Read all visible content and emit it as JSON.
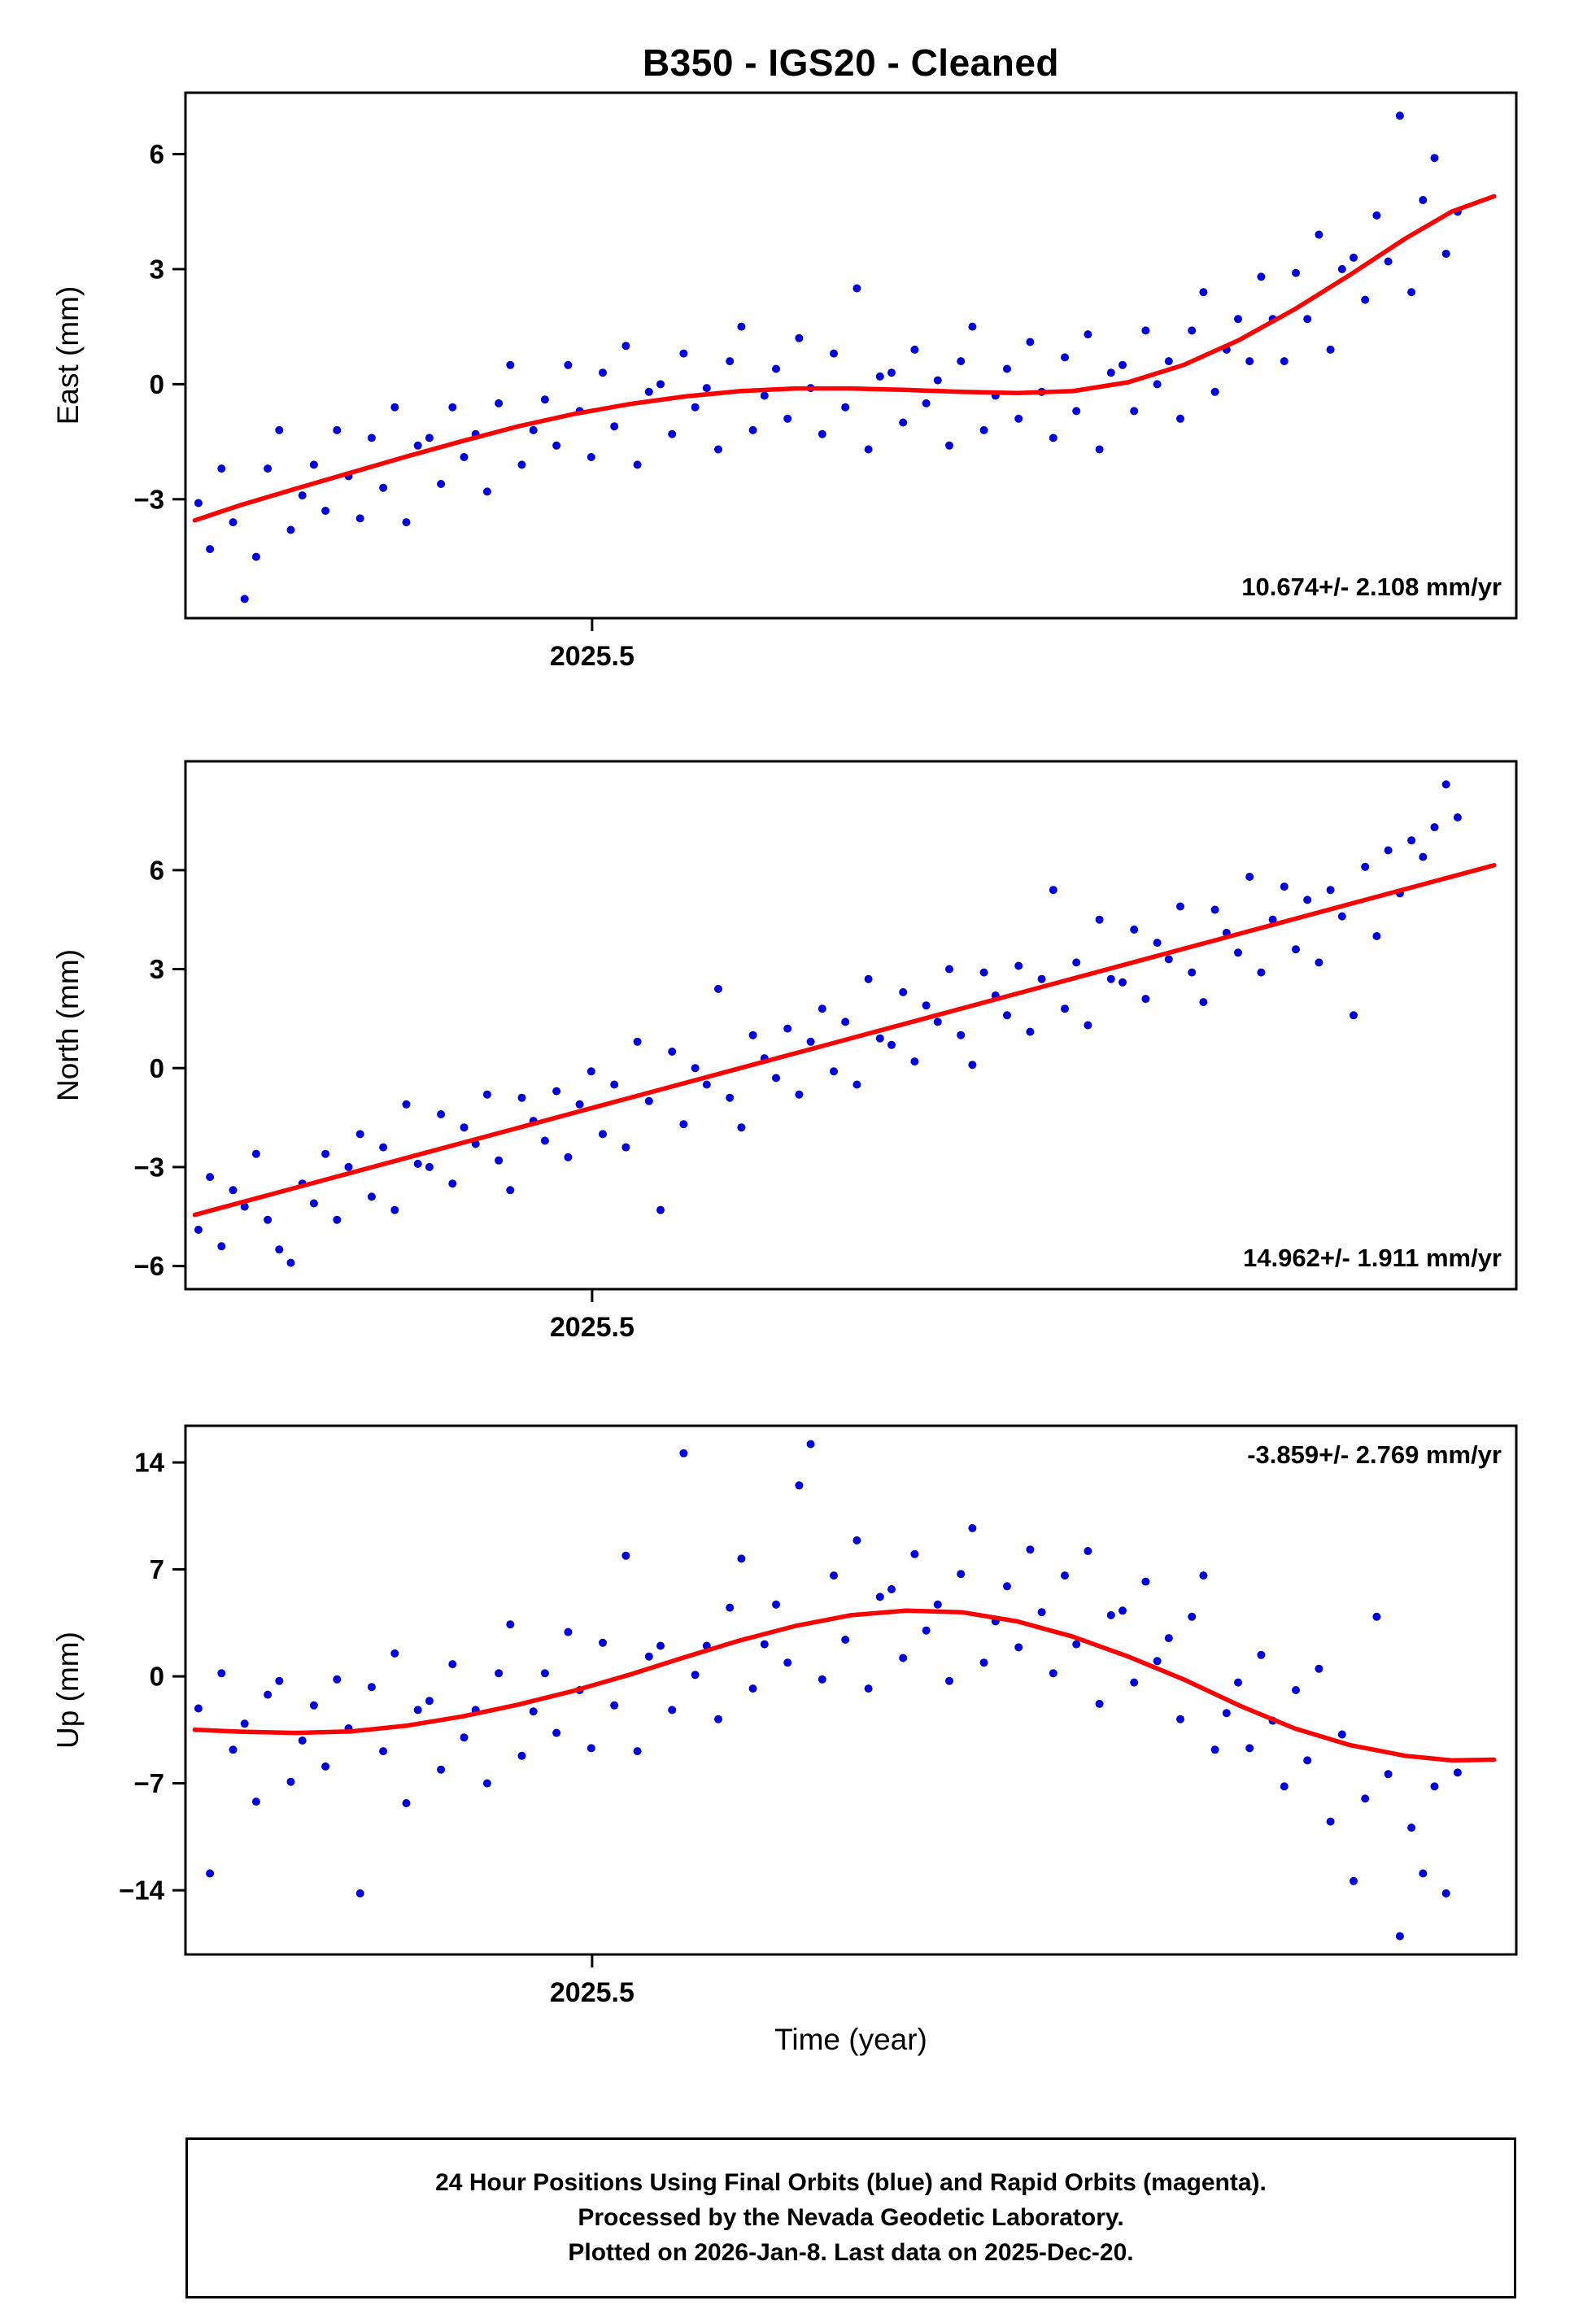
{
  "header": {
    "title": "B350  - IGS20 - Cleaned"
  },
  "chart_data": {
    "type": "scatter",
    "title": "B350  - IGS20 - Cleaned",
    "xlabel": "Time (year)",
    "legend": "none",
    "grid": false,
    "point_color": "#0000dd",
    "trend_color": "#ff0000",
    "frame_color": "#000000",
    "x_axis": {
      "min": 2025.28,
      "max": 2026.0,
      "tick_values": [
        2025.5
      ],
      "tick_labels": [
        "2025.5"
      ]
    },
    "x_series": {
      "start": 2025.287,
      "step": 0.00625,
      "count": 110
    },
    "panels": [
      {
        "name": "east",
        "ylabel": "East (mm)",
        "ymin": -6.1,
        "ymax": 7.6,
        "yticks": [
          -3,
          0,
          3,
          6
        ],
        "rate_label": "10.674+/- 2.108 mm/yr",
        "rate_corner": "bottom-right",
        "scatter_y": [
          -3.1,
          -4.3,
          -2.2,
          -3.6,
          -5.6,
          -4.5,
          -2.2,
          -1.2,
          -3.8,
          -2.9,
          -2.1,
          -3.3,
          -1.2,
          -2.4,
          -3.5,
          -1.4,
          -2.7,
          -0.6,
          -3.6,
          -1.6,
          -1.4,
          -2.6,
          -0.6,
          -1.9,
          -1.3,
          -2.8,
          -0.5,
          0.5,
          -2.1,
          -1.2,
          -0.4,
          -1.6,
          0.5,
          -0.7,
          -1.9,
          0.3,
          -1.1,
          1.0,
          -2.1,
          -0.2,
          0.0,
          -1.3,
          0.8,
          -0.6,
          -0.1,
          -1.7,
          0.6,
          1.5,
          -1.2,
          -0.3,
          0.4,
          -0.9,
          1.2,
          -0.1,
          -1.3,
          0.8,
          -0.6,
          2.5,
          -1.7,
          0.2,
          0.3,
          -1.0,
          0.9,
          -0.5,
          0.1,
          -1.6,
          0.6,
          1.5,
          -1.2,
          -0.3,
          0.4,
          -0.9,
          1.1,
          -0.2,
          -1.4,
          0.7,
          -0.7,
          1.3,
          -1.7,
          0.3,
          0.5,
          -0.7,
          1.4,
          0.0,
          0.6,
          -0.9,
          1.4,
          2.4,
          -0.2,
          0.9,
          1.7,
          0.6,
          2.8,
          1.7,
          0.6,
          2.9,
          1.7,
          3.9,
          0.9,
          3.0,
          3.3,
          2.2,
          4.4,
          3.2,
          7.0,
          2.4,
          4.8,
          5.9,
          3.4,
          4.5
        ],
        "trend": [
          [
            2025.285,
            -3.55
          ],
          [
            2025.31,
            -3.15
          ],
          [
            2025.34,
            -2.72
          ],
          [
            2025.37,
            -2.3
          ],
          [
            2025.4,
            -1.88
          ],
          [
            2025.43,
            -1.48
          ],
          [
            2025.46,
            -1.1
          ],
          [
            2025.49,
            -0.78
          ],
          [
            2025.52,
            -0.52
          ],
          [
            2025.55,
            -0.32
          ],
          [
            2025.58,
            -0.18
          ],
          [
            2025.61,
            -0.11
          ],
          [
            2025.64,
            -0.11
          ],
          [
            2025.67,
            -0.15
          ],
          [
            2025.7,
            -0.2
          ],
          [
            2025.73,
            -0.23
          ],
          [
            2025.76,
            -0.18
          ],
          [
            2025.79,
            0.05
          ],
          [
            2025.82,
            0.5
          ],
          [
            2025.85,
            1.15
          ],
          [
            2025.88,
            1.95
          ],
          [
            2025.91,
            2.85
          ],
          [
            2025.94,
            3.8
          ],
          [
            2025.965,
            4.5
          ],
          [
            2025.988,
            4.9
          ]
        ]
      },
      {
        "name": "north",
        "ylabel": "North (mm)",
        "ymin": -6.7,
        "ymax": 9.3,
        "yticks": [
          -6,
          -3,
          0,
          3,
          6
        ],
        "rate_label": "14.962+/- 1.911 mm/yr",
        "rate_corner": "bottom-right",
        "scatter_y": [
          -4.9,
          -3.3,
          -5.4,
          -3.7,
          -4.2,
          -2.6,
          -4.6,
          -5.5,
          -5.9,
          -3.5,
          -4.1,
          -2.6,
          -4.6,
          -3.0,
          -2.0,
          -3.9,
          -2.4,
          -4.3,
          -1.1,
          -2.9,
          -3.0,
          -1.4,
          -3.5,
          -1.8,
          -2.3,
          -0.8,
          -2.8,
          -3.7,
          -0.9,
          -1.6,
          -2.2,
          -0.7,
          -2.7,
          -1.1,
          -0.1,
          -2.0,
          -0.5,
          -2.4,
          0.8,
          -1.0,
          -4.3,
          0.5,
          -1.7,
          0.0,
          -0.5,
          2.4,
          -0.9,
          -1.8,
          1.0,
          0.3,
          -0.3,
          1.2,
          -0.8,
          0.8,
          1.8,
          -0.1,
          1.4,
          -0.5,
          2.7,
          0.9,
          0.7,
          2.3,
          0.2,
          1.9,
          1.4,
          3.0,
          1.0,
          0.1,
          2.9,
          2.2,
          1.6,
          3.1,
          1.1,
          2.7,
          5.4,
          1.8,
          3.2,
          1.3,
          4.5,
          2.7,
          2.6,
          4.2,
          2.1,
          3.8,
          3.3,
          4.9,
          2.9,
          2.0,
          4.8,
          4.1,
          3.5,
          5.8,
          2.9,
          4.5,
          5.5,
          3.6,
          5.1,
          3.2,
          5.4,
          4.6,
          1.6,
          6.1,
          4.0,
          6.6,
          5.3,
          6.9,
          6.4,
          7.3,
          8.6,
          7.6
        ],
        "trend": [
          [
            2025.285,
            -4.45
          ],
          [
            2025.988,
            6.15
          ]
        ]
      },
      {
        "name": "up",
        "ylabel": "Up (mm)",
        "ymin": -18.2,
        "ymax": 16.4,
        "yticks": [
          -14,
          -7,
          0,
          7,
          14
        ],
        "rate_label": "-3.859+/- 2.769 mm/yr",
        "rate_corner": "top-right",
        "scatter_y": [
          -2.1,
          -12.9,
          0.2,
          -4.8,
          -3.1,
          -8.2,
          -1.2,
          -0.3,
          -6.9,
          -4.2,
          -1.9,
          -5.9,
          -0.2,
          -3.4,
          -14.2,
          -0.7,
          -4.9,
          1.5,
          -8.3,
          -2.2,
          -1.6,
          -6.1,
          0.8,
          -4.0,
          -2.2,
          -7.0,
          0.2,
          3.4,
          -5.2,
          -2.3,
          0.2,
          -3.7,
          2.9,
          -0.9,
          -4.7,
          2.2,
          -1.9,
          7.9,
          -4.9,
          1.3,
          2.0,
          -2.2,
          14.6,
          0.1,
          2.0,
          -2.8,
          4.5,
          7.7,
          -0.8,
          2.1,
          4.7,
          0.9,
          12.5,
          15.2,
          -0.2,
          6.6,
          2.4,
          8.9,
          -0.8,
          5.2,
          5.7,
          1.2,
          8.0,
          3.0,
          4.7,
          -0.3,
          6.7,
          9.7,
          0.9,
          3.6,
          5.9,
          1.9,
          8.3,
          4.2,
          0.2,
          6.6,
          2.1,
          8.2,
          -1.8,
          4.0,
          4.3,
          -0.4,
          6.2,
          1.0,
          2.5,
          -2.8,
          3.9,
          6.6,
          -4.8,
          -2.4,
          -0.4,
          -4.7,
          1.4,
          -2.9,
          -7.2,
          -0.9,
          -5.5,
          0.5,
          -9.5,
          -3.8,
          -13.4,
          -8.0,
          3.9,
          -6.4,
          -17.0,
          -9.9,
          -12.9,
          -7.2,
          -14.2,
          -6.3
        ],
        "trend": [
          [
            2025.285,
            -3.5
          ],
          [
            2025.31,
            -3.62
          ],
          [
            2025.34,
            -3.7
          ],
          [
            2025.37,
            -3.6
          ],
          [
            2025.4,
            -3.22
          ],
          [
            2025.43,
            -2.62
          ],
          [
            2025.46,
            -1.85
          ],
          [
            2025.49,
            -0.95
          ],
          [
            2025.52,
            0.1
          ],
          [
            2025.55,
            1.25
          ],
          [
            2025.58,
            2.35
          ],
          [
            2025.61,
            3.3
          ],
          [
            2025.64,
            4.0
          ],
          [
            2025.67,
            4.3
          ],
          [
            2025.7,
            4.2
          ],
          [
            2025.73,
            3.6
          ],
          [
            2025.76,
            2.6
          ],
          [
            2025.79,
            1.3
          ],
          [
            2025.82,
            -0.2
          ],
          [
            2025.85,
            -1.9
          ],
          [
            2025.88,
            -3.4
          ],
          [
            2025.91,
            -4.5
          ],
          [
            2025.94,
            -5.2
          ],
          [
            2025.965,
            -5.5
          ],
          [
            2025.988,
            -5.45
          ]
        ]
      }
    ]
  },
  "footer": {
    "lines": [
      "24 Hour Positions Using Final Orbits (blue) and Rapid Orbits (magenta).",
      "Processed by the Nevada Geodetic Laboratory.",
      "Plotted on 2026-Jan-8. Last data on 2025-Dec-20."
    ]
  }
}
